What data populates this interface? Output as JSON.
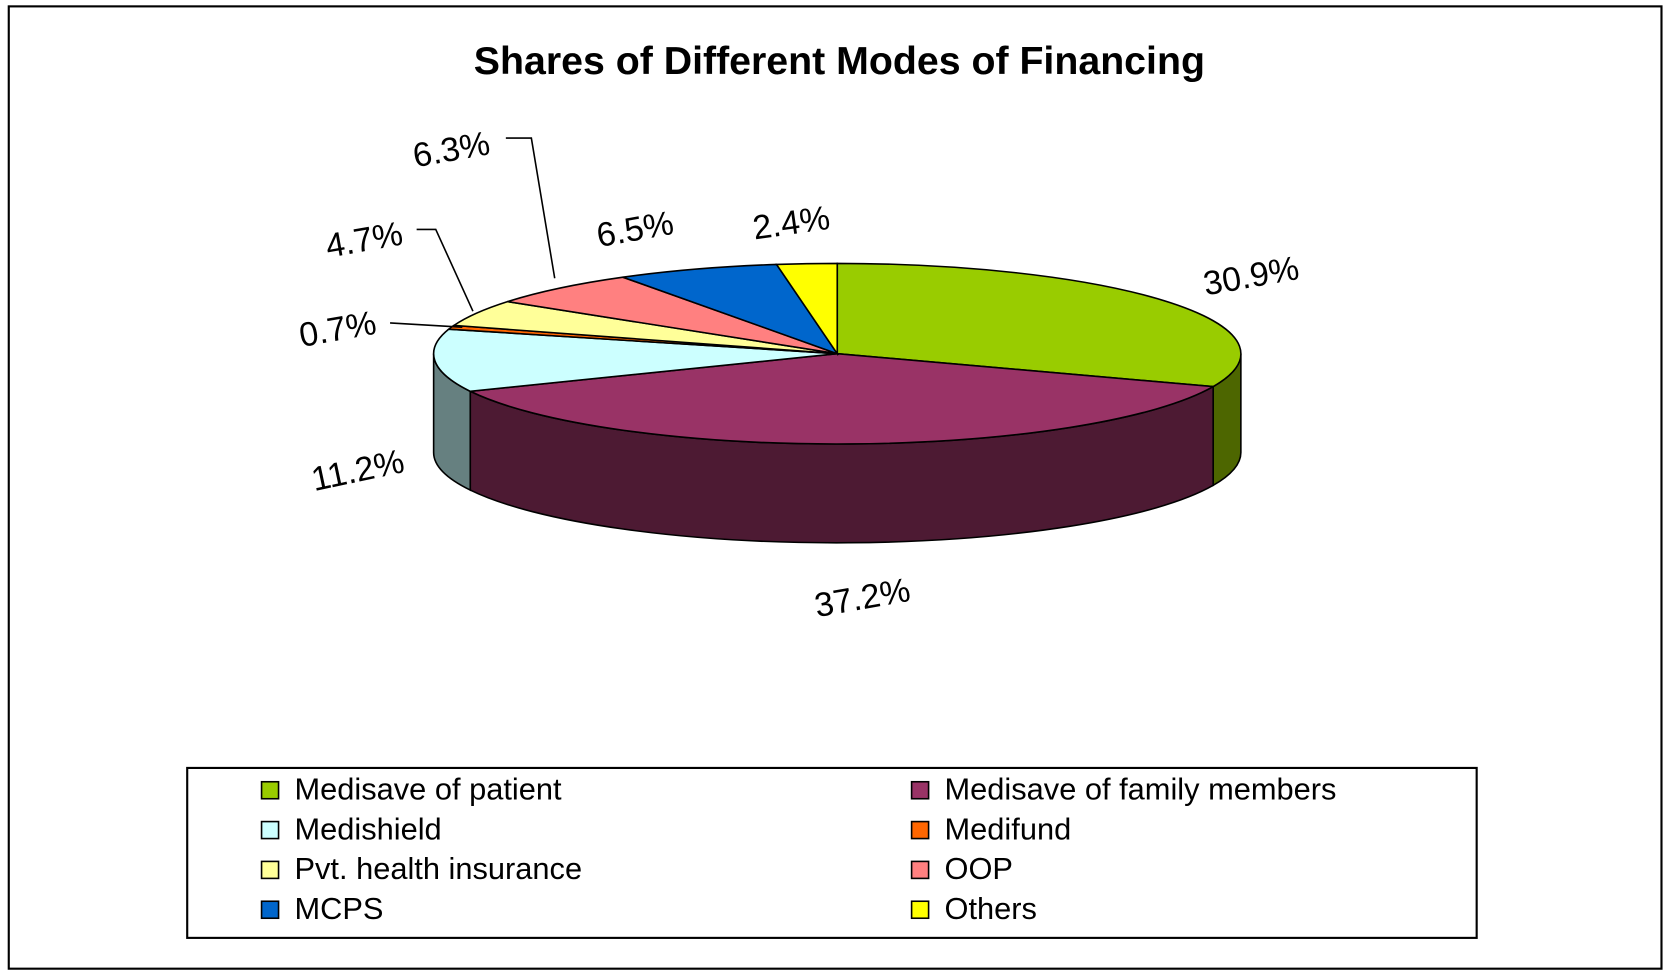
{
  "chart_data": {
    "type": "pie",
    "title": "Shares of Different Modes of Financing",
    "categories": [
      "Medisave of patient",
      "Medisave of family members",
      "Medishield",
      "Medifund",
      "Pvt. health insurance",
      "OOP",
      "MCPS",
      "Others"
    ],
    "values": [
      30.9,
      37.2,
      11.2,
      0.7,
      4.7,
      6.3,
      6.5,
      2.4
    ],
    "value_labels": [
      "30.9%",
      "37.2%",
      "11.2%",
      "0.7%",
      "4.7%",
      "6.3%",
      "6.5%",
      "2.4%"
    ],
    "colors": [
      "#99cc00",
      "#993366",
      "#ccffff",
      "#ff6600",
      "#ffff99",
      "#ff8080",
      "#0066cc",
      "#ffff00"
    ]
  }
}
